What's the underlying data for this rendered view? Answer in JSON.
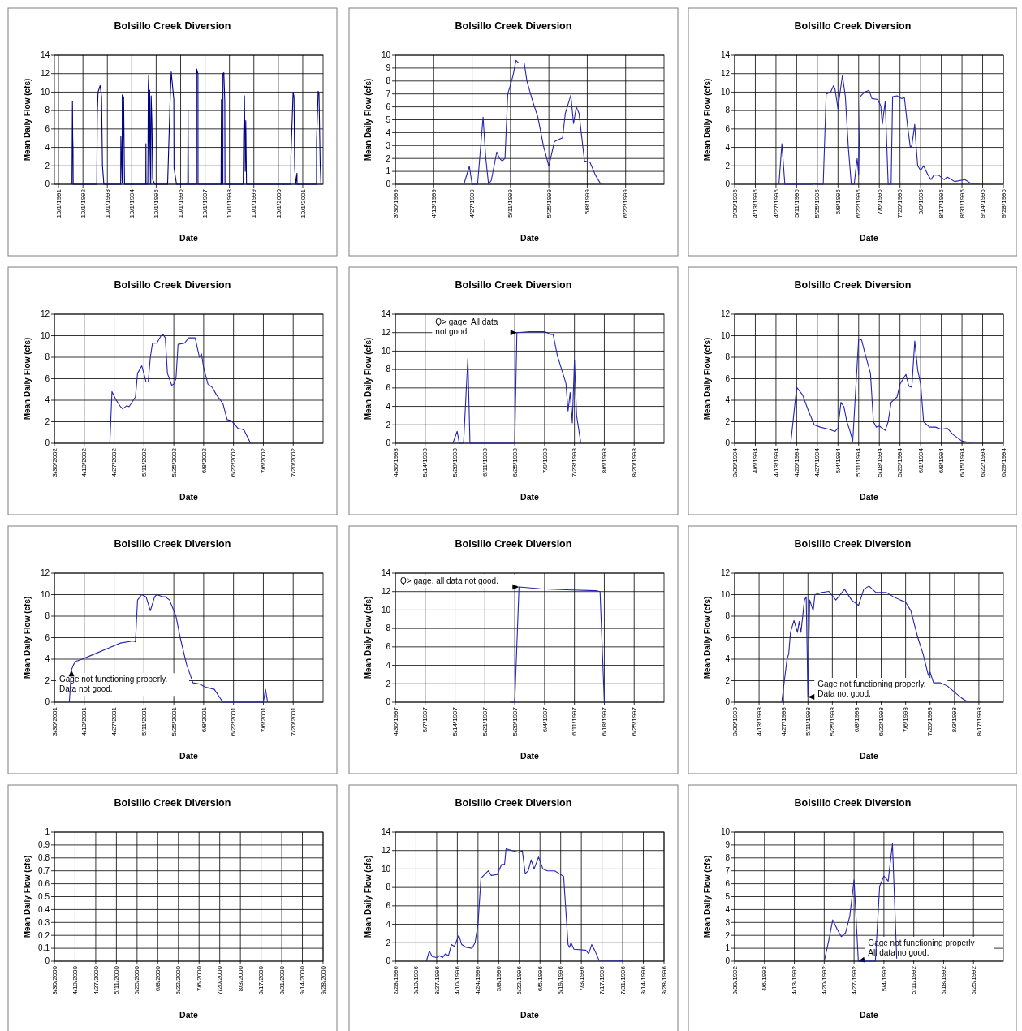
{
  "chart_data": [
    {
      "type": "line",
      "title": "Bolsillo Creek Diversion",
      "xlabel": "Date",
      "ylabel": "Mean Daily Flow (cfs)",
      "grid": true,
      "xlim": [
        "1991-08-01",
        "2002-08-01"
      ],
      "xticks": [
        {
          "value": "1991-10-01",
          "label": "10/1/1991"
        },
        {
          "value": "1992-10-01",
          "label": "10/1/1992"
        },
        {
          "value": "1993-10-01",
          "label": "10/1/1993"
        },
        {
          "value": "1994-10-01",
          "label": "10/1/1994"
        },
        {
          "value": "1995-10-01",
          "label": "10/1/1995"
        },
        {
          "value": "1996-10-01",
          "label": "10/1/1996"
        },
        {
          "value": "1997-10-01",
          "label": "10/1/1997"
        },
        {
          "value": "1998-10-01",
          "label": "10/1/1998"
        },
        {
          "value": "1999-10-01",
          "label": "10/1/1999"
        },
        {
          "value": "2000-10-01",
          "label": "10/1/2000"
        },
        {
          "value": "2001-10-01",
          "label": "10/1/2001"
        }
      ],
      "ylim": [
        0,
        14
      ],
      "yticks": [
        0,
        2,
        4,
        6,
        8,
        10,
        12,
        14
      ],
      "series": [
        {
          "color": "#000080",
          "x": [
            "1992-04-20",
            "1992-04-27",
            "1992-05-01",
            "1992-05-05",
            "1992-05-08",
            "1993-04-26",
            "1993-05-03",
            "1993-05-15",
            "1993-06-15",
            "1993-07-06",
            "1993-07-20",
            "1993-08-10",
            "1994-04-18",
            "1994-04-21",
            "1994-05-11",
            "1994-05-12",
            "1994-05-18",
            "1994-06-01",
            "1994-06-15",
            "1995-04-29",
            "1995-05-01",
            "1995-05-03",
            "1995-05-29",
            "1995-06-05",
            "1995-06-11",
            "1995-06-17",
            "1995-06-26",
            "1995-07-12",
            "1995-07-18",
            "1995-07-30",
            "1995-08-10",
            "1995-09-12",
            "1996-03-20",
            "1996-04-26",
            "1996-05-13",
            "1996-06-21",
            "1996-06-24",
            "1996-07-31",
            "1997-01-15",
            "1997-01-20",
            "1997-01-25",
            "1997-05-28",
            "1997-05-29",
            "1997-06-17",
            "1997-06-18",
            "1998-05-28",
            "1998-05-29",
            "1998-06-03",
            "1998-06-04",
            "1998-06-25",
            "1998-06-26",
            "1998-07-09",
            "1998-07-23",
            "1998-07-26",
            "1999-04-25",
            "1999-04-26",
            "1999-05-01",
            "1999-05-13",
            "1999-05-25",
            "1999-06-02",
            "1999-06-13",
            "2001-04-06",
            "2001-04-07",
            "2001-05-10",
            "2001-05-23",
            "2001-06-03",
            "2001-06-17",
            "2001-07-07",
            "2001-07-08",
            "2002-04-25",
            "2002-04-26",
            "2002-05-20",
            "2002-06-01",
            "2002-06-19",
            "2002-06-30"
          ],
          "values": [
            0,
            9,
            5,
            4,
            0,
            0,
            7.6,
            10,
            10.7,
            9.5,
            2,
            0,
            0,
            5.2,
            0.2,
            9.7,
            1.5,
            9.5,
            0,
            0,
            4.4,
            0,
            0,
            10.7,
            11.8,
            0,
            10.2,
            0,
            9.6,
            6.5,
            0.5,
            0,
            0,
            9,
            12.2,
            9.2,
            1.8,
            0,
            0,
            8,
            0,
            0,
            12.5,
            12,
            0,
            0,
            1.3,
            9.2,
            0,
            0,
            12,
            12.1,
            9,
            0,
            0,
            1.4,
            5.2,
            9.6,
            1.4,
            6.9,
            0,
            0,
            3,
            10,
            9.5,
            1.8,
            0,
            1.2,
            0,
            0,
            4.8,
            10.1,
            9.8,
            2.2,
            0
          ]
        }
      ]
    },
    {
      "type": "line",
      "title": "Bolsillo Creek Diversion",
      "xlabel": "Date",
      "ylabel": "Mean Daily Flow (cfs)",
      "grid": true,
      "xlim": [
        "1999-03-30",
        "1999-07-06"
      ],
      "xticks": [
        {
          "value": "1999-03-30",
          "label": "3/30/1999"
        },
        {
          "value": "1999-04-13",
          "label": "4/13/1999"
        },
        {
          "value": "1999-04-27",
          "label": "4/27/1999"
        },
        {
          "value": "1999-05-11",
          "label": "5/11/1999"
        },
        {
          "value": "1999-05-25",
          "label": "5/25/1999"
        },
        {
          "value": "1999-06-08",
          "label": "6/8/1999"
        },
        {
          "value": "1999-06-22",
          "label": "6/22/1999"
        }
      ],
      "ylim": [
        0,
        10
      ],
      "yticks": [
        0,
        1,
        2,
        3,
        4,
        5,
        6,
        7,
        8,
        9,
        10
      ],
      "series": [
        {
          "color": "#2323b4",
          "x": [
            "1999-04-24",
            "1999-04-26",
            "1999-04-27",
            "1999-04-29",
            "1999-05-01",
            "1999-05-02",
            "1999-05-03",
            "1999-05-04",
            "1999-05-06",
            "1999-05-07",
            "1999-05-08",
            "1999-05-09",
            "1999-05-10",
            "1999-05-11",
            "1999-05-12",
            "1999-05-13",
            "1999-05-14",
            "1999-05-16",
            "1999-05-17",
            "1999-05-19",
            "1999-05-21",
            "1999-05-23",
            "1999-05-25",
            "1999-05-27",
            "1999-05-29",
            "1999-05-30",
            "1999-05-31",
            "1999-06-01",
            "1999-06-02",
            "1999-06-03",
            "1999-06-04",
            "1999-06-05",
            "1999-06-07",
            "1999-06-09",
            "1999-06-11",
            "1999-06-13"
          ],
          "values": [
            0,
            1.4,
            0,
            0,
            5.2,
            2,
            0,
            0.3,
            2.5,
            2,
            1.8,
            2,
            7,
            7.7,
            8.5,
            9.6,
            9.4,
            9.4,
            8,
            6.5,
            5.2,
            3,
            1.4,
            3.3,
            3.5,
            3.6,
            5.5,
            6.2,
            6.9,
            4.7,
            6,
            5.5,
            1.8,
            1.7,
            0.7,
            0
          ]
        }
      ]
    },
    {
      "type": "line",
      "title": "Bolsillo Creek Diversion",
      "xlabel": "Date",
      "ylabel": "Mean Daily Flow (cfs)",
      "grid": true,
      "xlim": [
        "1995-03-30",
        "1995-09-28"
      ],
      "xticks": [
        {
          "value": "1995-03-30",
          "label": "3/30/1995"
        },
        {
          "value": "1995-04-13",
          "label": "4/13/1995"
        },
        {
          "value": "1995-04-27",
          "label": "4/27/1995"
        },
        {
          "value": "1995-05-11",
          "label": "5/11/1995"
        },
        {
          "value": "1995-05-25",
          "label": "5/25/1995"
        },
        {
          "value": "1995-06-08",
          "label": "6/8/1995"
        },
        {
          "value": "1995-06-22",
          "label": "6/22/1995"
        },
        {
          "value": "1995-07-06",
          "label": "7/6/1995"
        },
        {
          "value": "1995-07-20",
          "label": "7/20/1995"
        },
        {
          "value": "1995-08-03",
          "label": "8/3/1995"
        },
        {
          "value": "1995-08-17",
          "label": "8/17/1995"
        },
        {
          "value": "1995-08-31",
          "label": "8/31/1995"
        },
        {
          "value": "1995-09-14",
          "label": "9/14/1995"
        },
        {
          "value": "1995-09-28",
          "label": "9/28/1995"
        }
      ],
      "ylim": [
        0,
        14
      ],
      "yticks": [
        0,
        2,
        4,
        6,
        8,
        10,
        12,
        14
      ],
      "series": [
        {
          "color": "#2323b4",
          "x": [
            "1995-04-29",
            "1995-05-01",
            "1995-05-03",
            "1995-05-21",
            "1995-05-23",
            "1995-05-25",
            "1995-05-29",
            "1995-05-31",
            "1995-06-03",
            "1995-06-05",
            "1995-06-06",
            "1995-06-08",
            "1995-06-09",
            "1995-06-11",
            "1995-06-13",
            "1995-06-15",
            "1995-06-17",
            "1995-06-19",
            "1995-06-20",
            "1995-06-21",
            "1995-06-22",
            "1995-06-23",
            "1995-06-26",
            "1995-06-29",
            "1995-07-01",
            "1995-07-05",
            "1995-07-07",
            "1995-07-08",
            "1995-07-10",
            "1995-07-12",
            "1995-07-14",
            "1995-07-15",
            "1995-07-18",
            "1995-07-21",
            "1995-07-23",
            "1995-07-25",
            "1995-07-27",
            "1995-07-28",
            "1995-07-30",
            "1995-07-31",
            "1995-08-01",
            "1995-08-03",
            "1995-08-05",
            "1995-08-08",
            "1995-08-10",
            "1995-08-12",
            "1995-08-15",
            "1995-08-19",
            "1995-08-21",
            "1995-08-26",
            "1995-09-02",
            "1995-09-06",
            "1995-09-12"
          ],
          "values": [
            0,
            4.4,
            0,
            0,
            0.1,
            0,
            0,
            9.8,
            10,
            10.7,
            10.3,
            8.2,
            9.5,
            11.8,
            9.5,
            4,
            0,
            0,
            1.5,
            2.8,
            1,
            9.5,
            10,
            10.2,
            9.3,
            9.2,
            8.5,
            6.5,
            9,
            0,
            0,
            9.5,
            9.6,
            9.3,
            9.4,
            6.5,
            4,
            4.2,
            6.5,
            4,
            2,
            1.5,
            2,
            1,
            0.5,
            1,
            1,
            0.5,
            0.8,
            0.3,
            0.5,
            0.1,
            0.1
          ]
        }
      ]
    },
    {
      "type": "line",
      "title": "Bolsillo Creek Diversion",
      "xlabel": "Date",
      "ylabel": "Mean Daily Flow (cfs)",
      "grid": true,
      "xlim": [
        "2002-03-30",
        "2002-08-03"
      ],
      "xticks": [
        {
          "value": "2002-03-30",
          "label": "3/30/2002"
        },
        {
          "value": "2002-04-13",
          "label": "4/13/2002"
        },
        {
          "value": "2002-04-27",
          "label": "4/27/2002"
        },
        {
          "value": "2002-05-11",
          "label": "5/11/2002"
        },
        {
          "value": "2002-05-25",
          "label": "5/25/2002"
        },
        {
          "value": "2002-06-08",
          "label": "6/8/2002"
        },
        {
          "value": "2002-06-22",
          "label": "6/22/2002"
        },
        {
          "value": "2002-07-06",
          "label": "7/6/2002"
        },
        {
          "value": "2002-07-20",
          "label": "7/20/2002"
        }
      ],
      "ylim": [
        0,
        12
      ],
      "yticks": [
        0,
        2,
        4,
        6,
        8,
        10,
        12
      ],
      "series": [
        {
          "color": "#2323b4",
          "x": [
            "2002-04-25",
            "2002-04-26",
            "2002-04-28",
            "2002-04-30",
            "2002-05-01",
            "2002-05-03",
            "2002-05-04",
            "2002-05-06",
            "2002-05-07",
            "2002-05-08",
            "2002-05-10",
            "2002-05-12",
            "2002-05-13",
            "2002-05-14",
            "2002-05-15",
            "2002-05-17",
            "2002-05-19",
            "2002-05-20",
            "2002-05-21",
            "2002-05-22",
            "2002-05-24",
            "2002-05-25",
            "2002-05-26",
            "2002-05-27",
            "2002-05-30",
            "2002-06-01",
            "2002-06-04",
            "2002-06-06",
            "2002-06-07",
            "2002-06-08",
            "2002-06-10",
            "2002-06-12",
            "2002-06-14",
            "2002-06-17",
            "2002-06-19",
            "2002-06-21",
            "2002-06-24",
            "2002-06-26",
            "2002-06-27",
            "2002-06-30"
          ],
          "values": [
            0,
            4.8,
            4,
            3.4,
            3.2,
            3.5,
            3.4,
            4,
            4.3,
            6.5,
            7.2,
            5.7,
            5.7,
            8,
            9.3,
            9.3,
            10,
            10.1,
            9.8,
            6.5,
            5.4,
            5.5,
            6,
            9.2,
            9.3,
            9.8,
            9.8,
            8,
            8.3,
            7,
            5.5,
            5.2,
            4.5,
            3.7,
            2.2,
            2.1,
            1.4,
            1.3,
            1.2,
            0
          ]
        }
      ]
    },
    {
      "type": "line",
      "title": "Bolsillo Creek Diversion",
      "xlabel": "Date",
      "ylabel": "Mean Daily Flow (cfs)",
      "grid": true,
      "xlim": [
        "1998-04-30",
        "1998-09-03"
      ],
      "xticks": [
        {
          "value": "1998-04-30",
          "label": "4/30/1998"
        },
        {
          "value": "1998-05-14",
          "label": "5/14/1998"
        },
        {
          "value": "1998-05-28",
          "label": "5/28/1998"
        },
        {
          "value": "1998-06-11",
          "label": "6/11/1998"
        },
        {
          "value": "1998-06-25",
          "label": "6/25/1998"
        },
        {
          "value": "1998-07-09",
          "label": "7/9/1998"
        },
        {
          "value": "1998-07-23",
          "label": "7/23/1998"
        },
        {
          "value": "1998-08-06",
          "label": "8/6/1998"
        },
        {
          "value": "1998-08-20",
          "label": "8/20/1998"
        }
      ],
      "ylim": [
        0,
        14
      ],
      "yticks": [
        0,
        2,
        4,
        6,
        8,
        10,
        12,
        14
      ],
      "annotations": [
        {
          "text": "Q> gage, All data\nnot good.",
          "x": "1998-06-26",
          "y": 12
        }
      ],
      "series": [
        {
          "color": "#2323b4",
          "x": [
            "1998-05-27",
            "1998-05-29",
            "1998-05-30",
            "1998-06-01",
            "1998-06-03",
            "1998-06-04",
            "1998-06-25",
            "1998-06-26",
            "1998-07-02",
            "1998-07-09",
            "1998-07-12",
            "1998-07-13",
            "1998-07-15",
            "1998-07-17",
            "1998-07-19",
            "1998-07-20",
            "1998-07-21",
            "1998-07-22",
            "1998-07-23",
            "1998-07-24",
            "1998-07-26"
          ],
          "values": [
            0,
            1.3,
            0,
            0,
            9.2,
            0,
            0,
            12,
            12.1,
            12.1,
            11.8,
            11.8,
            9.5,
            8,
            6.5,
            3.5,
            5.5,
            2.2,
            9,
            3,
            0
          ]
        }
      ]
    },
    {
      "type": "line",
      "title": "Bolsillo Creek Diversion",
      "xlabel": "Date",
      "ylabel": "Mean Daily Flow (cfs)",
      "grid": true,
      "xlim": [
        "1994-03-30",
        "1994-06-29"
      ],
      "xticks": [
        {
          "value": "1994-03-30",
          "label": "3/30/1994"
        },
        {
          "value": "1994-04-06",
          "label": "4/6/1994"
        },
        {
          "value": "1994-04-13",
          "label": "4/13/1994"
        },
        {
          "value": "1994-04-20",
          "label": "4/20/1994"
        },
        {
          "value": "1994-04-27",
          "label": "4/27/1994"
        },
        {
          "value": "1994-05-04",
          "label": "5/4/1994"
        },
        {
          "value": "1994-05-11",
          "label": "5/11/1994"
        },
        {
          "value": "1994-05-18",
          "label": "5/18/1994"
        },
        {
          "value": "1994-05-25",
          "label": "5/25/1994"
        },
        {
          "value": "1994-06-01",
          "label": "6/1/1994"
        },
        {
          "value": "1994-06-08",
          "label": "6/8/1994"
        },
        {
          "value": "1994-06-15",
          "label": "6/15/1994"
        },
        {
          "value": "1994-06-22",
          "label": "6/22/1994"
        },
        {
          "value": "1994-06-29",
          "label": "6/29/1994"
        }
      ],
      "ylim": [
        0,
        12
      ],
      "yticks": [
        0,
        2,
        4,
        6,
        8,
        10,
        12
      ],
      "series": [
        {
          "color": "#2323b4",
          "x": [
            "1994-04-18",
            "1994-04-20",
            "1994-04-22",
            "1994-04-24",
            "1994-04-26",
            "1994-04-28",
            "1994-05-01",
            "1994-05-03",
            "1994-05-04",
            "1994-05-05",
            "1994-05-06",
            "1994-05-07",
            "1994-05-08",
            "1994-05-09",
            "1994-05-10",
            "1994-05-11",
            "1994-05-12",
            "1994-05-13",
            "1994-05-15",
            "1994-05-16",
            "1994-05-17",
            "1994-05-18",
            "1994-05-20",
            "1994-05-21",
            "1994-05-22",
            "1994-05-24",
            "1994-05-25",
            "1994-05-27",
            "1994-05-28",
            "1994-05-29",
            "1994-05-30",
            "1994-05-31",
            "1994-06-01",
            "1994-06-02",
            "1994-06-04",
            "1994-06-06",
            "1994-06-08",
            "1994-06-10",
            "1994-06-12",
            "1994-06-15",
            "1994-06-17",
            "1994-06-19"
          ],
          "values": [
            0,
            5.2,
            4.5,
            3,
            1.7,
            1.5,
            1.3,
            1.1,
            1.4,
            3.8,
            3.4,
            2,
            1.2,
            0.2,
            5,
            9.7,
            9.6,
            8.5,
            6.5,
            2,
            1.5,
            1.6,
            1.2,
            2,
            3.8,
            4.3,
            5.5,
            6.4,
            5.3,
            5.2,
            9.5,
            6.8,
            5.5,
            2,
            1.5,
            1.5,
            1.3,
            1.4,
            0.8,
            0.2,
            0.1,
            0.1
          ]
        }
      ]
    },
    {
      "type": "line",
      "title": "Bolsillo Creek Diversion",
      "xlabel": "Date",
      "ylabel": "Mean Daily Flow (cfs)",
      "grid": true,
      "xlim": [
        "2001-03-30",
        "2001-08-03"
      ],
      "xticks": [
        {
          "value": "2001-03-30",
          "label": "3/30/2001"
        },
        {
          "value": "2001-04-13",
          "label": "4/13/2001"
        },
        {
          "value": "2001-04-27",
          "label": "4/27/2001"
        },
        {
          "value": "2001-05-11",
          "label": "5/11/2001"
        },
        {
          "value": "2001-05-25",
          "label": "5/25/2001"
        },
        {
          "value": "2001-06-08",
          "label": "6/8/2001"
        },
        {
          "value": "2001-06-22",
          "label": "6/22/2001"
        },
        {
          "value": "2001-07-06",
          "label": "7/6/2001"
        },
        {
          "value": "2001-07-20",
          "label": "7/20/2001"
        }
      ],
      "ylim": [
        0,
        12
      ],
      "yticks": [
        0,
        2,
        4,
        6,
        8,
        10,
        12
      ],
      "annotations": [
        {
          "text": "Gage not functioning properly.\nData not good.",
          "x": "2001-04-07",
          "y": 3
        }
      ],
      "series": [
        {
          "color": "#2323b4",
          "x": [
            "2001-04-06",
            "2001-04-07",
            "2001-04-08",
            "2001-04-09",
            "2001-04-12",
            "2001-04-18",
            "2001-04-24",
            "2001-04-30",
            "2001-05-06",
            "2001-05-07",
            "2001-05-08",
            "2001-05-10",
            "2001-05-12",
            "2001-05-14",
            "2001-05-16",
            "2001-05-17",
            "2001-05-20",
            "2001-05-21",
            "2001-05-23",
            "2001-05-26",
            "2001-05-28",
            "2001-05-31",
            "2001-06-03",
            "2001-06-06",
            "2001-06-09",
            "2001-06-13",
            "2001-06-17",
            "2001-07-06",
            "2001-07-07",
            "2001-07-08"
          ],
          "values": [
            0,
            3,
            3.5,
            3.8,
            4,
            4.5,
            5,
            5.5,
            5.7,
            5.6,
            9.5,
            10,
            9.8,
            8.5,
            9.8,
            10,
            9.8,
            9.8,
            9.5,
            8,
            6,
            3.5,
            1.8,
            1.7,
            1.4,
            1.2,
            0,
            0,
            1.2,
            0
          ]
        }
      ]
    },
    {
      "type": "line",
      "title": "Bolsillo Creek Diversion",
      "xlabel": "Date",
      "ylabel": "Mean Daily Flow (cfs)",
      "grid": true,
      "xlim": [
        "1997-04-30",
        "1997-07-02"
      ],
      "xticks": [
        {
          "value": "1997-04-30",
          "label": "4/30/1997"
        },
        {
          "value": "1997-05-07",
          "label": "5/7/1997"
        },
        {
          "value": "1997-05-14",
          "label": "5/14/1997"
        },
        {
          "value": "1997-05-21",
          "label": "5/21/1997"
        },
        {
          "value": "1997-05-28",
          "label": "5/28/1997"
        },
        {
          "value": "1997-06-04",
          "label": "6/4/1997"
        },
        {
          "value": "1997-06-11",
          "label": "6/11/1997"
        },
        {
          "value": "1997-06-18",
          "label": "6/18/1997"
        },
        {
          "value": "1997-06-25",
          "label": "6/25/1997"
        }
      ],
      "ylim": [
        0,
        14
      ],
      "yticks": [
        0,
        2,
        4,
        6,
        8,
        10,
        12,
        14
      ],
      "annotations": [
        {
          "text": "Q> gage, all data not good.",
          "x": "1997-05-29",
          "y": 12.5
        }
      ],
      "series": [
        {
          "color": "#2323b4",
          "x": [
            "1997-05-27",
            "1997-05-28",
            "1997-05-29",
            "1997-06-03",
            "1997-06-09",
            "1997-06-16",
            "1997-06-17",
            "1997-06-18"
          ],
          "values": [
            0,
            0,
            12.5,
            12.3,
            12.2,
            12.1,
            12,
            0
          ]
        }
      ]
    },
    {
      "type": "line",
      "title": "Bolsillo Creek Diversion",
      "xlabel": "Date",
      "ylabel": "Mean Daily Flow (cfs)",
      "grid": true,
      "xlim": [
        "1993-03-30",
        "1993-08-31"
      ],
      "xticks": [
        {
          "value": "1993-03-30",
          "label": "3/30/1993"
        },
        {
          "value": "1993-04-13",
          "label": "4/13/1993"
        },
        {
          "value": "1993-04-27",
          "label": "4/27/1993"
        },
        {
          "value": "1993-05-11",
          "label": "5/11/1993"
        },
        {
          "value": "1993-05-25",
          "label": "5/25/1993"
        },
        {
          "value": "1993-06-08",
          "label": "6/8/1993"
        },
        {
          "value": "1993-06-22",
          "label": "6/22/1993"
        },
        {
          "value": "1993-07-06",
          "label": "7/6/1993"
        },
        {
          "value": "1993-07-20",
          "label": "7/20/1993"
        },
        {
          "value": "1993-08-03",
          "label": "8/3/1993"
        },
        {
          "value": "1993-08-17",
          "label": "8/17/1993"
        }
      ],
      "ylim": [
        0,
        12
      ],
      "yticks": [
        0,
        2,
        4,
        6,
        8,
        10,
        12
      ],
      "annotations": [
        {
          "text": "Gage not functioning properly.\nData not good.",
          "x": "1993-05-11",
          "y": 0.5
        }
      ],
      "series": [
        {
          "color": "#2323b4",
          "x": [
            "1993-04-26",
            "1993-04-29",
            "1993-04-30",
            "1993-05-01",
            "1993-05-03",
            "1993-05-05",
            "1993-05-06",
            "1993-05-07",
            "1993-05-09",
            "1993-05-10",
            "1993-05-11",
            "1993-05-12",
            "1993-05-14",
            "1993-05-15",
            "1993-05-19",
            "1993-05-23",
            "1993-05-27",
            "1993-06-01",
            "1993-06-05",
            "1993-06-09",
            "1993-06-12",
            "1993-06-15",
            "1993-06-19",
            "1993-06-25",
            "1993-06-29",
            "1993-07-03",
            "1993-07-06",
            "1993-07-09",
            "1993-07-13",
            "1993-07-16",
            "1993-07-19",
            "1993-07-20",
            "1993-07-22",
            "1993-07-26",
            "1993-07-30",
            "1993-08-04",
            "1993-08-07",
            "1993-08-10",
            "1993-08-19"
          ],
          "values": [
            0,
            4,
            4.5,
            6.5,
            7.6,
            6.5,
            7.5,
            6.5,
            9.5,
            9.8,
            0.5,
            9.5,
            8.5,
            10,
            10.2,
            10.3,
            9.5,
            10.5,
            9.5,
            9,
            10.5,
            10.8,
            10.2,
            10.2,
            9.8,
            9.5,
            9.3,
            8.5,
            6,
            4.5,
            2.5,
            2.8,
            1.8,
            1.8,
            1.5,
            0.8,
            0.4,
            0.1,
            0.1
          ]
        }
      ]
    },
    {
      "type": "line",
      "title": "Bolsillo Creek Diversion",
      "xlabel": "Date",
      "ylabel": "Mean Daily Flow (cfs)",
      "grid": true,
      "xlim": [
        "2000-03-30",
        "2000-09-28"
      ],
      "xticks": [
        {
          "value": "2000-03-30",
          "label": "3/30/2000"
        },
        {
          "value": "2000-04-13",
          "label": "4/13/2000"
        },
        {
          "value": "2000-04-27",
          "label": "4/27/2000"
        },
        {
          "value": "2000-05-11",
          "label": "5/11/2000"
        },
        {
          "value": "2000-05-25",
          "label": "5/25/2000"
        },
        {
          "value": "2000-06-08",
          "label": "6/8/2000"
        },
        {
          "value": "2000-06-22",
          "label": "6/22/2000"
        },
        {
          "value": "2000-07-06",
          "label": "7/6/2000"
        },
        {
          "value": "2000-07-20",
          "label": "7/20/2000"
        },
        {
          "value": "2000-08-03",
          "label": "8/3/2000"
        },
        {
          "value": "2000-08-17",
          "label": "8/17/2000"
        },
        {
          "value": "2000-08-31",
          "label": "8/31/2000"
        },
        {
          "value": "2000-09-14",
          "label": "9/14/2000"
        },
        {
          "value": "2000-09-28",
          "label": "9/28/2000"
        }
      ],
      "ylim": [
        0,
        1
      ],
      "yticks": [
        0,
        0.1,
        0.2,
        0.3,
        0.4,
        0.5,
        0.6,
        0.7,
        0.8,
        0.9,
        1
      ]
    },
    {
      "type": "line",
      "title": "Bolsillo Creek Diversion",
      "xlabel": "Date",
      "ylabel": "Mean Daily Flow (cfs)",
      "grid": true,
      "xlim": [
        "1996-02-28",
        "1996-08-28"
      ],
      "xticks": [
        {
          "value": "1996-02-28",
          "label": "2/28/1996"
        },
        {
          "value": "1996-03-13",
          "label": "3/13/1996"
        },
        {
          "value": "1996-03-27",
          "label": "3/27/1996"
        },
        {
          "value": "1996-04-10",
          "label": "4/10/1996"
        },
        {
          "value": "1996-04-24",
          "label": "4/24/1996"
        },
        {
          "value": "1996-05-08",
          "label": "5/8/1996"
        },
        {
          "value": "1996-05-22",
          "label": "5/22/1996"
        },
        {
          "value": "1996-06-05",
          "label": "6/5/1996"
        },
        {
          "value": "1996-06-19",
          "label": "6/19/1996"
        },
        {
          "value": "1996-07-03",
          "label": "7/3/1996"
        },
        {
          "value": "1996-07-17",
          "label": "7/17/1996"
        },
        {
          "value": "1996-07-31",
          "label": "7/31/1996"
        },
        {
          "value": "1996-08-14",
          "label": "8/14/1996"
        },
        {
          "value": "1996-08-28",
          "label": "8/28/1996"
        }
      ],
      "ylim": [
        0,
        14
      ],
      "yticks": [
        0,
        2,
        4,
        6,
        8,
        10,
        12,
        14
      ],
      "series": [
        {
          "color": "#2323b4",
          "x": [
            "1996-03-20",
            "1996-03-22",
            "1996-03-24",
            "1996-03-27",
            "1996-03-29",
            "1996-03-31",
            "1996-04-02",
            "1996-04-04",
            "1996-04-06",
            "1996-04-08",
            "1996-04-11",
            "1996-04-13",
            "1996-04-16",
            "1996-04-20",
            "1996-04-22",
            "1996-04-24",
            "1996-04-26",
            "1996-04-29",
            "1996-05-01",
            "1996-05-03",
            "1996-05-07",
            "1996-05-10",
            "1996-05-12",
            "1996-05-13",
            "1996-05-17",
            "1996-05-22",
            "1996-05-24",
            "1996-05-26",
            "1996-05-28",
            "1996-05-30",
            "1996-06-01",
            "1996-06-04",
            "1996-06-07",
            "1996-06-10",
            "1996-06-15",
            "1996-06-18",
            "1996-06-21",
            "1996-06-24",
            "1996-06-25",
            "1996-06-26",
            "1996-06-28",
            "1996-07-06",
            "1996-07-08",
            "1996-07-10",
            "1996-07-12",
            "1996-07-15",
            "1996-07-24",
            "1996-07-28",
            "1996-07-31"
          ],
          "values": [
            0,
            1.1,
            0.5,
            0.4,
            0.6,
            0.4,
            0.8,
            0.6,
            1.8,
            1.6,
            2.8,
            1.8,
            1.5,
            1.4,
            2,
            4,
            9,
            9.5,
            9.8,
            9.3,
            9.4,
            10.5,
            10.5,
            12.2,
            12,
            11.8,
            12,
            9.5,
            9.8,
            11,
            10,
            11.3,
            10,
            9.8,
            9.8,
            9.5,
            9.2,
            1.8,
            1.5,
            2,
            1.3,
            1.2,
            0.8,
            1.8,
            1.2,
            0.1,
            0.1,
            0.1,
            0
          ]
        }
      ]
    },
    {
      "type": "line",
      "title": "Bolsillo Creek Diversion",
      "xlabel": "Date",
      "ylabel": "Mean Daily Flow (cfs)",
      "grid": true,
      "xlim": [
        "1992-03-30",
        "1992-06-01"
      ],
      "xticks": [
        {
          "value": "1992-03-30",
          "label": "3/30/1992"
        },
        {
          "value": "1992-04-06",
          "label": "4/6/1992"
        },
        {
          "value": "1992-04-13",
          "label": "4/13/1992"
        },
        {
          "value": "1992-04-20",
          "label": "4/20/1992"
        },
        {
          "value": "1992-04-27",
          "label": "4/27/1992"
        },
        {
          "value": "1992-05-04",
          "label": "5/4/1992"
        },
        {
          "value": "1992-05-11",
          "label": "5/11/1992"
        },
        {
          "value": "1992-05-18",
          "label": "5/18/1992"
        },
        {
          "value": "1992-05-25",
          "label": "5/25/1992"
        }
      ],
      "ylim": [
        0,
        10
      ],
      "yticks": [
        0,
        1,
        2,
        3,
        4,
        5,
        6,
        7,
        8,
        9,
        10
      ],
      "annotations": [
        {
          "text": "Gage not functioning properly\nAll data no good.",
          "x": "1992-04-28",
          "y": 0
        }
      ],
      "series": [
        {
          "color": "#2323b4",
          "x": [
            "1992-04-20",
            "1992-04-21",
            "1992-04-22",
            "1992-04-23",
            "1992-04-24",
            "1992-04-25",
            "1992-04-26",
            "1992-04-27",
            "1992-04-28",
            "1992-05-02",
            "1992-05-03",
            "1992-05-04",
            "1992-05-05",
            "1992-05-06",
            "1992-05-07"
          ],
          "values": [
            0,
            1.5,
            3.2,
            2.5,
            1.9,
            2.2,
            3.5,
            6.3,
            0,
            0,
            5.8,
            6.6,
            6.2,
            9.1,
            0.2
          ]
        }
      ]
    }
  ]
}
